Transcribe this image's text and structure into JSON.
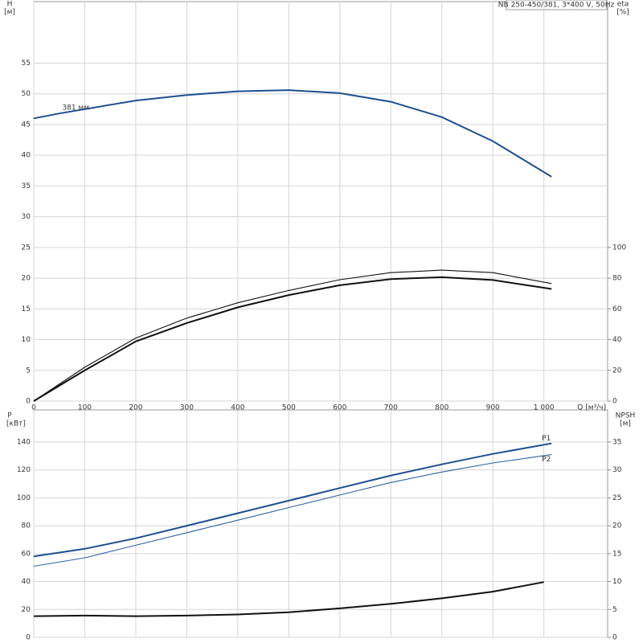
{
  "chart_data": [
    {
      "type": "line",
      "title": "NB 250-450/381, 3*400 V, 50Hz",
      "xlabel": "Q [м³/ч]",
      "ylabel": "H",
      "yunit": "[м]",
      "y2label": "eta",
      "y2unit": "[%]",
      "xlim": [
        0,
        1125
      ],
      "xticks": [
        0,
        100,
        200,
        300,
        400,
        500,
        600,
        700,
        800,
        900,
        {
          "value": 1000,
          "label": "1 000"
        }
      ],
      "ylim": [
        0,
        65
      ],
      "yticks": [
        0,
        5,
        10,
        15,
        20,
        25,
        30,
        35,
        40,
        45,
        50,
        55
      ],
      "y2lim": [
        0,
        260
      ],
      "y2ticks": [
        0,
        20,
        40,
        60,
        80,
        100
      ],
      "grid": true,
      "series": [
        {
          "name": "381 мм",
          "color": "#1d4f8f",
          "x": [
            0,
            50,
            100,
            200,
            300,
            400,
            500,
            600,
            700,
            800,
            900,
            1015
          ],
          "values": [
            46,
            46.8,
            47.5,
            48.9,
            49.8,
            50.4,
            50.6,
            50.1,
            48.7,
            46.2,
            42.3,
            36.5
          ]
        },
        {
          "color": "#111111",
          "axis": "y2",
          "x": [
            0,
            100,
            200,
            300,
            400,
            500,
            600,
            700,
            800,
            900,
            1015
          ],
          "values": [
            0,
            20,
            38.8,
            50.8,
            61,
            69,
            75.4,
            79.4,
            80.6,
            78.8,
            73
          ]
        },
        {
          "color": "#111111",
          "axis": "y2",
          "x": [
            0,
            100,
            200,
            300,
            400,
            500,
            600,
            700,
            800,
            900,
            1015
          ],
          "values": [
            0,
            22,
            41,
            54,
            64,
            72,
            79,
            83.6,
            85.2,
            83.6,
            76.5
          ]
        }
      ]
    },
    {
      "type": "line",
      "ylabel": "P",
      "yunit": "[кВт]",
      "y2label": "NPSH",
      "y2unit": "[м]",
      "xlim": [
        0,
        1125
      ],
      "xticks": [
        0,
        100,
        200,
        300,
        400,
        500,
        600,
        700,
        800,
        900,
        1000
      ],
      "ylim": [
        0,
        163
      ],
      "yticks": [
        0,
        20,
        40,
        60,
        80,
        100,
        120,
        140
      ],
      "y2lim": [
        0,
        40.75
      ],
      "y2ticks": [
        0,
        5,
        10,
        15,
        20,
        25,
        30,
        35
      ],
      "grid": true,
      "series": [
        {
          "name": "P1",
          "color": "#1d4f8f",
          "x": [
            0,
            100,
            200,
            300,
            400,
            500,
            600,
            700,
            800,
            900,
            1015
          ],
          "values": [
            58,
            63.5,
            71,
            80,
            89,
            98,
            107,
            116,
            124,
            131.5,
            139
          ]
        },
        {
          "name": "P2",
          "color": "#2f62a8",
          "x": [
            0,
            100,
            200,
            300,
            400,
            500,
            600,
            700,
            800,
            900,
            1015
          ],
          "values": [
            51,
            57,
            66,
            75,
            84,
            93,
            102,
            111,
            118.5,
            125,
            131
          ]
        },
        {
          "color": "#111111",
          "axis": "y2",
          "x": [
            0,
            100,
            200,
            300,
            400,
            500,
            600,
            700,
            800,
            900,
            1000
          ],
          "values": [
            3.8,
            3.9,
            3.8,
            3.9,
            4.1,
            4.5,
            5.2,
            6.0,
            7.0,
            8.2,
            9.9
          ]
        }
      ]
    }
  ]
}
